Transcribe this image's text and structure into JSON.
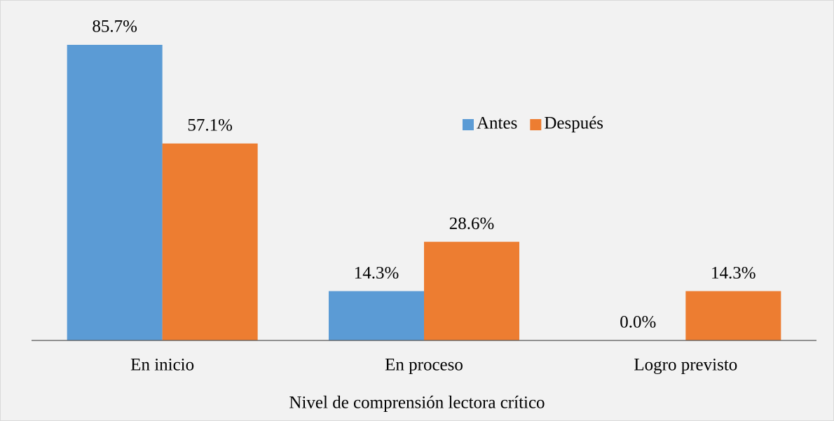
{
  "chart_data": {
    "type": "bar",
    "x_label": "Nivel de comprensión lectora crítico",
    "categories": [
      "En inicio",
      "En proceso",
      "Logro previsto"
    ],
    "series": [
      {
        "name": "Antes",
        "color": "#5b9bd5",
        "values": [
          85.7,
          14.3,
          0.0
        ],
        "value_labels": [
          "85.7%",
          "14.3%",
          "0.0%"
        ]
      },
      {
        "name": "Después",
        "color": "#ed7d31",
        "values": [
          57.1,
          28.6,
          14.3
        ],
        "value_labels": [
          "57.1%",
          "28.6%",
          "14.3%"
        ]
      }
    ],
    "legend": "right"
  }
}
